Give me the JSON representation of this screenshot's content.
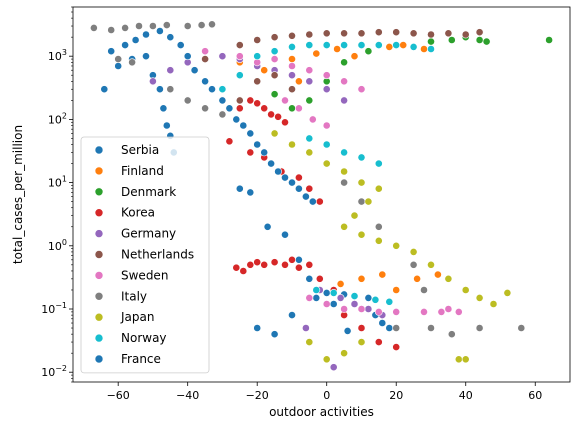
{
  "chart_data": {
    "type": "scatter",
    "xlabel": "outdoor activities",
    "ylabel": "total_cases_per_million",
    "xlim": [
      -73,
      70
    ],
    "ylim": [
      0.007,
      6000
    ],
    "yscale": "log",
    "grid": false,
    "legend_position": "lower-left",
    "x_ticks": [
      {
        "value": -60,
        "label": "−60"
      },
      {
        "value": -40,
        "label": "−40"
      },
      {
        "value": -20,
        "label": "−20"
      },
      {
        "value": 0,
        "label": "0"
      },
      {
        "value": 20,
        "label": "20"
      },
      {
        "value": 40,
        "label": "40"
      },
      {
        "value": 60,
        "label": "60"
      }
    ],
    "y_ticks": [
      {
        "value": 0.01,
        "label": "10",
        "exp": "−2"
      },
      {
        "value": 0.1,
        "label": "10",
        "exp": "−1"
      },
      {
        "value": 1,
        "label": "10",
        "exp": "0"
      },
      {
        "value": 10,
        "label": "10",
        "exp": "1"
      },
      {
        "value": 100,
        "label": "10",
        "exp": "2"
      },
      {
        "value": 1000,
        "label": "10",
        "exp": "3"
      }
    ],
    "series": [
      {
        "name": "Serbia",
        "color": "#1f77b4",
        "points": [
          [
            -64,
            300
          ],
          [
            -60,
            700
          ],
          [
            -56,
            900
          ],
          [
            -52,
            1000
          ],
          [
            -50,
            500
          ],
          [
            -48,
            300
          ],
          [
            -47,
            150
          ],
          [
            -46,
            80
          ],
          [
            -45,
            55
          ],
          [
            -44,
            30
          ],
          [
            -25,
            8
          ],
          [
            -22,
            7
          ],
          [
            -17,
            2
          ],
          [
            -12,
            1.5
          ],
          [
            -8,
            0.6
          ],
          [
            -5,
            0.3
          ],
          [
            -3,
            0.15
          ],
          [
            0,
            0.18
          ],
          [
            2,
            0.12
          ],
          [
            5,
            0.17
          ],
          [
            8,
            0.16
          ],
          [
            10,
            0.1
          ],
          [
            12,
            0.15
          ],
          [
            14,
            0.08
          ],
          [
            16,
            0.06
          ],
          [
            -10,
            0.08
          ],
          [
            -20,
            0.05
          ],
          [
            -15,
            0.04
          ],
          [
            18,
            0.05
          ],
          [
            6,
            0.045
          ]
        ]
      },
      {
        "name": "Finland",
        "color": "#ff7f0e",
        "points": [
          [
            -25,
            800
          ],
          [
            -18,
            600
          ],
          [
            -10,
            900
          ],
          [
            -3,
            1100
          ],
          [
            3,
            1300
          ],
          [
            8,
            1000
          ],
          [
            12,
            1200
          ],
          [
            18,
            1400
          ],
          [
            22,
            1500
          ],
          [
            28,
            1300
          ],
          [
            -8,
            400
          ],
          [
            0,
            300
          ],
          [
            -2,
            0.3
          ],
          [
            4,
            0.25
          ],
          [
            10,
            0.3
          ],
          [
            16,
            0.35
          ],
          [
            20,
            0.2
          ],
          [
            26,
            0.3
          ],
          [
            32,
            0.35
          ],
          [
            -5,
            0.15
          ],
          [
            8,
            0.12
          ]
        ]
      },
      {
        "name": "Denmark",
        "color": "#2ca02c",
        "points": [
          [
            -10,
            150
          ],
          [
            -5,
            200
          ],
          [
            0,
            400
          ],
          [
            5,
            800
          ],
          [
            12,
            1200
          ],
          [
            20,
            1500
          ],
          [
            30,
            1700
          ],
          [
            36,
            1800
          ],
          [
            40,
            2000
          ],
          [
            44,
            1800
          ],
          [
            46,
            1700
          ],
          [
            64,
            1800
          ],
          [
            -15,
            250
          ],
          [
            -20,
            180
          ]
        ]
      },
      {
        "name": "Korea",
        "color": "#d62728",
        "points": [
          [
            -30,
            300
          ],
          [
            -25,
            150
          ],
          [
            -22,
            200
          ],
          [
            -20,
            180
          ],
          [
            -18,
            150
          ],
          [
            -16,
            120
          ],
          [
            -14,
            110
          ],
          [
            -12,
            90
          ],
          [
            -28,
            45
          ],
          [
            -22,
            30
          ],
          [
            -18,
            25
          ],
          [
            -13,
            15
          ],
          [
            -8,
            12
          ],
          [
            -5,
            8
          ],
          [
            -2,
            5
          ],
          [
            -24,
            0.4
          ],
          [
            -22,
            0.5
          ],
          [
            -20,
            0.55
          ],
          [
            -18,
            0.5
          ],
          [
            -15,
            0.55
          ],
          [
            -12,
            0.5
          ],
          [
            -8,
            0.45
          ],
          [
            -5,
            0.5
          ],
          [
            -2,
            0.3
          ],
          [
            2,
            0.2
          ],
          [
            5,
            0.08
          ],
          [
            10,
            0.05
          ],
          [
            15,
            0.03
          ],
          [
            20,
            0.025
          ],
          [
            -10,
            0.6
          ],
          [
            -26,
            0.45
          ]
        ]
      },
      {
        "name": "Germany",
        "color": "#9467bd",
        "points": [
          [
            -50,
            400
          ],
          [
            -45,
            600
          ],
          [
            -40,
            800
          ],
          [
            -35,
            900
          ],
          [
            -30,
            1000
          ],
          [
            -25,
            900
          ],
          [
            -20,
            700
          ],
          [
            -15,
            600
          ],
          [
            -10,
            500
          ],
          [
            -5,
            400
          ],
          [
            0,
            300
          ],
          [
            5,
            200
          ],
          [
            -2,
            0.2
          ],
          [
            4,
            0.15
          ],
          [
            8,
            0.12
          ],
          [
            12,
            0.1
          ],
          [
            16,
            0.08
          ],
          [
            2,
            0.012
          ],
          [
            -6,
            0.05
          ]
        ]
      },
      {
        "name": "Netherlands",
        "color": "#8c564b",
        "points": [
          [
            -35,
            900
          ],
          [
            -25,
            1500
          ],
          [
            -20,
            1800
          ],
          [
            -15,
            2000
          ],
          [
            -10,
            2100
          ],
          [
            -5,
            2200
          ],
          [
            0,
            2300
          ],
          [
            5,
            2300
          ],
          [
            10,
            2300
          ],
          [
            15,
            2400
          ],
          [
            20,
            2400
          ],
          [
            25,
            2300
          ],
          [
            30,
            2200
          ],
          [
            35,
            2300
          ],
          [
            40,
            2200
          ],
          [
            44,
            2400
          ],
          [
            -30,
            300
          ],
          [
            -25,
            200
          ],
          [
            -20,
            400
          ],
          [
            -15,
            500
          ],
          [
            -10,
            300
          ]
        ]
      },
      {
        "name": "Sweden",
        "color": "#e377c2",
        "points": [
          [
            -35,
            1200
          ],
          [
            -25,
            1000
          ],
          [
            -20,
            800
          ],
          [
            -15,
            900
          ],
          [
            -10,
            700
          ],
          [
            -5,
            600
          ],
          [
            0,
            500
          ],
          [
            5,
            400
          ],
          [
            10,
            300
          ],
          [
            -12,
            200
          ],
          [
            -8,
            150
          ],
          [
            -4,
            100
          ],
          [
            0,
            80
          ],
          [
            -5,
            0.15
          ],
          [
            0,
            0.12
          ],
          [
            5,
            0.1
          ],
          [
            10,
            0.1
          ],
          [
            15,
            0.09
          ],
          [
            20,
            0.09
          ],
          [
            28,
            0.09
          ],
          [
            33,
            0.09
          ],
          [
            35,
            0.1
          ],
          [
            38,
            0.09
          ]
        ]
      },
      {
        "name": "Italy",
        "color": "#7f7f7f",
        "points": [
          [
            -67,
            2800
          ],
          [
            -62,
            2600
          ],
          [
            -58,
            2800
          ],
          [
            -54,
            3000
          ],
          [
            -50,
            3000
          ],
          [
            -46,
            3100
          ],
          [
            -40,
            3000
          ],
          [
            -36,
            3100
          ],
          [
            -33,
            3200
          ],
          [
            -60,
            900
          ],
          [
            -56,
            800
          ],
          [
            -45,
            300
          ],
          [
            -40,
            200
          ],
          [
            -35,
            150
          ],
          [
            -30,
            120
          ],
          [
            -5,
            30
          ],
          [
            0,
            20
          ],
          [
            5,
            10
          ],
          [
            10,
            5
          ],
          [
            15,
            2
          ],
          [
            20,
            1
          ],
          [
            25,
            0.5
          ],
          [
            28,
            0.2
          ],
          [
            20,
            0.05
          ],
          [
            30,
            0.05
          ],
          [
            36,
            0.04
          ],
          [
            44,
            0.05
          ],
          [
            56,
            0.05
          ]
        ]
      },
      {
        "name": "Japan",
        "color": "#bcbd22",
        "points": [
          [
            -15,
            60
          ],
          [
            -10,
            40
          ],
          [
            -5,
            30
          ],
          [
            0,
            20
          ],
          [
            5,
            15
          ],
          [
            10,
            10
          ],
          [
            15,
            8
          ],
          [
            12,
            5
          ],
          [
            8,
            3
          ],
          [
            5,
            2
          ],
          [
            10,
            1.5
          ],
          [
            15,
            1.2
          ],
          [
            20,
            1
          ],
          [
            25,
            0.8
          ],
          [
            30,
            0.5
          ],
          [
            35,
            0.3
          ],
          [
            40,
            0.2
          ],
          [
            44,
            0.15
          ],
          [
            48,
            0.12
          ],
          [
            52,
            0.18
          ],
          [
            38,
            0.016
          ],
          [
            40,
            0.016
          ],
          [
            -5,
            0.03
          ],
          [
            0,
            0.016
          ],
          [
            5,
            0.02
          ],
          [
            10,
            0.03
          ]
        ]
      },
      {
        "name": "Norway",
        "color": "#17becf",
        "points": [
          [
            -30,
            300
          ],
          [
            -25,
            500
          ],
          [
            -20,
            1000
          ],
          [
            -15,
            1200
          ],
          [
            -10,
            1400
          ],
          [
            -5,
            1500
          ],
          [
            0,
            1500
          ],
          [
            5,
            1500
          ],
          [
            10,
            1500
          ],
          [
            15,
            1500
          ],
          [
            20,
            1500
          ],
          [
            25,
            1400
          ],
          [
            30,
            1300
          ],
          [
            -5,
            50
          ],
          [
            0,
            40
          ],
          [
            5,
            30
          ],
          [
            10,
            25
          ],
          [
            15,
            20
          ],
          [
            -3,
            0.2
          ],
          [
            2,
            0.18
          ],
          [
            8,
            0.16
          ],
          [
            14,
            0.14
          ],
          [
            18,
            0.13
          ]
        ]
      },
      {
        "name": "France",
        "color": "#1f77b4",
        "points": [
          [
            -62,
            1200
          ],
          [
            -58,
            1500
          ],
          [
            -55,
            1800
          ],
          [
            -52,
            2200
          ],
          [
            -48,
            2500
          ],
          [
            -45,
            2000
          ],
          [
            -42,
            1500
          ],
          [
            -40,
            1000
          ],
          [
            -38,
            600
          ],
          [
            -35,
            400
          ],
          [
            -33,
            300
          ],
          [
            -30,
            200
          ],
          [
            -28,
            150
          ],
          [
            -26,
            100
          ],
          [
            -24,
            80
          ],
          [
            -22,
            60
          ],
          [
            -20,
            40
          ],
          [
            -18,
            30
          ],
          [
            -16,
            20
          ],
          [
            -14,
            15
          ],
          [
            -12,
            12
          ],
          [
            -10,
            10
          ],
          [
            -8,
            8
          ],
          [
            -6,
            6
          ],
          [
            -4,
            5
          ]
        ]
      }
    ]
  }
}
